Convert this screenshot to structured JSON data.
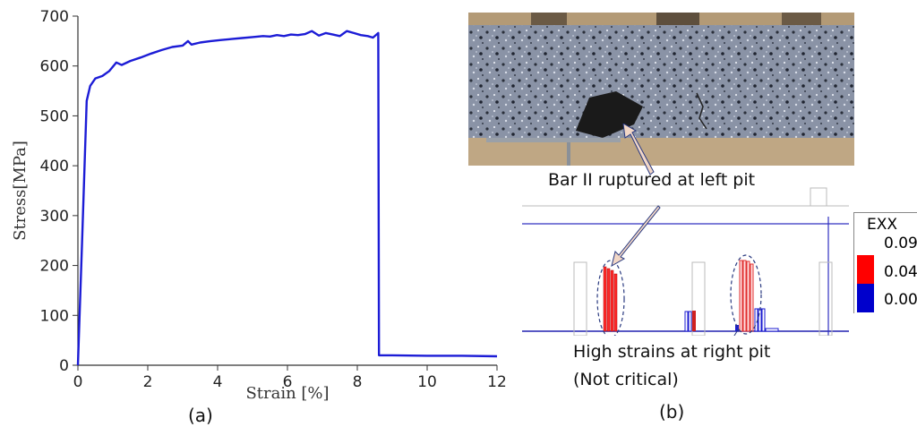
{
  "chart_data": {
    "type": "line",
    "xlabel": "Strain [%]",
    "ylabel": "Stress[MPa]",
    "xlim": [
      0,
      12
    ],
    "ylim": [
      0,
      700
    ],
    "xticks": [
      "0",
      "2",
      "4",
      "6",
      "8",
      "10",
      "12"
    ],
    "yticks": [
      "0",
      "100",
      "200",
      "300",
      "400",
      "500",
      "600",
      "700"
    ],
    "grid": false,
    "line_color": "#1c1cd6",
    "series": [
      {
        "x": [
          0,
          0.12,
          0.25,
          0.35,
          0.5,
          0.7,
          0.9,
          1.1,
          1.25,
          1.5,
          1.8,
          2.1,
          2.4,
          2.7,
          3.0,
          3.15,
          3.25,
          3.5,
          3.8,
          4.1,
          4.4,
          4.7,
          5.0,
          5.3,
          5.5,
          5.7,
          5.9,
          6.1,
          6.3,
          6.5,
          6.7,
          6.9,
          7.1,
          7.3,
          7.5,
          7.7,
          7.9,
          8.1,
          8.3,
          8.45,
          8.6,
          8.62,
          9.0,
          10.0,
          11.0,
          12.0
        ],
        "y": [
          0,
          250,
          530,
          560,
          575,
          580,
          590,
          607,
          602,
          610,
          617,
          625,
          632,
          638,
          641,
          650,
          643,
          647,
          650,
          652,
          654,
          656,
          658,
          660,
          659,
          662,
          660,
          663,
          662,
          664,
          670,
          661,
          666,
          663,
          660,
          670,
          666,
          662,
          660,
          657,
          666,
          20,
          20,
          19,
          19,
          18
        ]
      }
    ]
  },
  "labels": {
    "panel_a": "(a)",
    "panel_b": "(b)",
    "callout_rupture": "Bar II ruptured at left pit",
    "callout_high_1": "High strains at right pit",
    "callout_high_2": "(Not critical)"
  },
  "legend": {
    "title": "EXX",
    "values": [
      "0.09",
      "0.04",
      "0.00"
    ],
    "colors": [
      "#ff0000",
      "#0000cc",
      "#0000cc"
    ]
  }
}
